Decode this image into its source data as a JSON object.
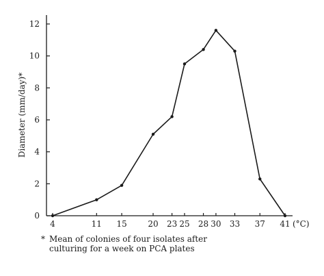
{
  "chart_data": {
    "type": "line",
    "title": "",
    "xlabel": "",
    "x_unit_label": "(°C)",
    "ylabel": "Diameter  (mm/day)*",
    "x": [
      4,
      11,
      15,
      20,
      23,
      25,
      28,
      30,
      33,
      37,
      41
    ],
    "series": [
      {
        "values": [
          0,
          1.0,
          1.9,
          5.1,
          6.2,
          9.5,
          10.4,
          11.6,
          10.3,
          2.3,
          0
        ]
      }
    ],
    "xticks": [
      4,
      11,
      15,
      20,
      23,
      25,
      28,
      30,
      33,
      37,
      41
    ],
    "yticks": [
      0,
      2,
      4,
      6,
      8,
      10,
      12
    ],
    "xlim": [
      4,
      41
    ],
    "ylim": [
      0,
      12
    ],
    "grid": false,
    "color": "#1a1a1a"
  },
  "footnote": {
    "marker": "*",
    "line1": "Mean of colonies of four isolates after",
    "line2": "culturing for a week on PCA plates"
  }
}
